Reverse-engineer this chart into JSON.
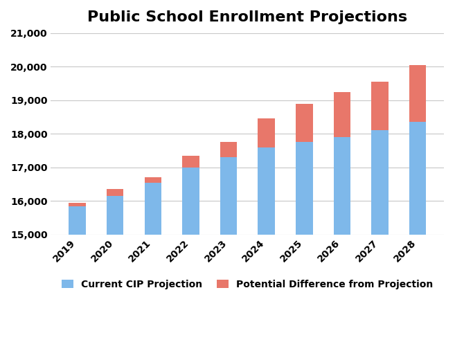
{
  "title": "Public School Enrollment Projections",
  "years": [
    2019,
    2020,
    2021,
    2022,
    2023,
    2024,
    2025,
    2026,
    2027,
    2028
  ],
  "cip_values": [
    15850,
    16150,
    16550,
    17000,
    17300,
    17600,
    17750,
    17900,
    18100,
    18350
  ],
  "diff_values": [
    100,
    200,
    150,
    350,
    450,
    850,
    1150,
    1350,
    1450,
    1700
  ],
  "cip_color": "#7EB8EA",
  "diff_color": "#E8776A",
  "ylim_min": 15000,
  "ylim_max": 21000,
  "yticks": [
    15000,
    16000,
    17000,
    18000,
    19000,
    20000,
    21000
  ],
  "legend_cip": "Current CIP Projection",
  "legend_diff": "Potential Difference from Projection",
  "bg_color": "#FFFFFF",
  "grid_color": "#C8C8C8",
  "title_fontsize": 16,
  "tick_fontsize": 10,
  "legend_fontsize": 10,
  "bar_width": 0.45
}
